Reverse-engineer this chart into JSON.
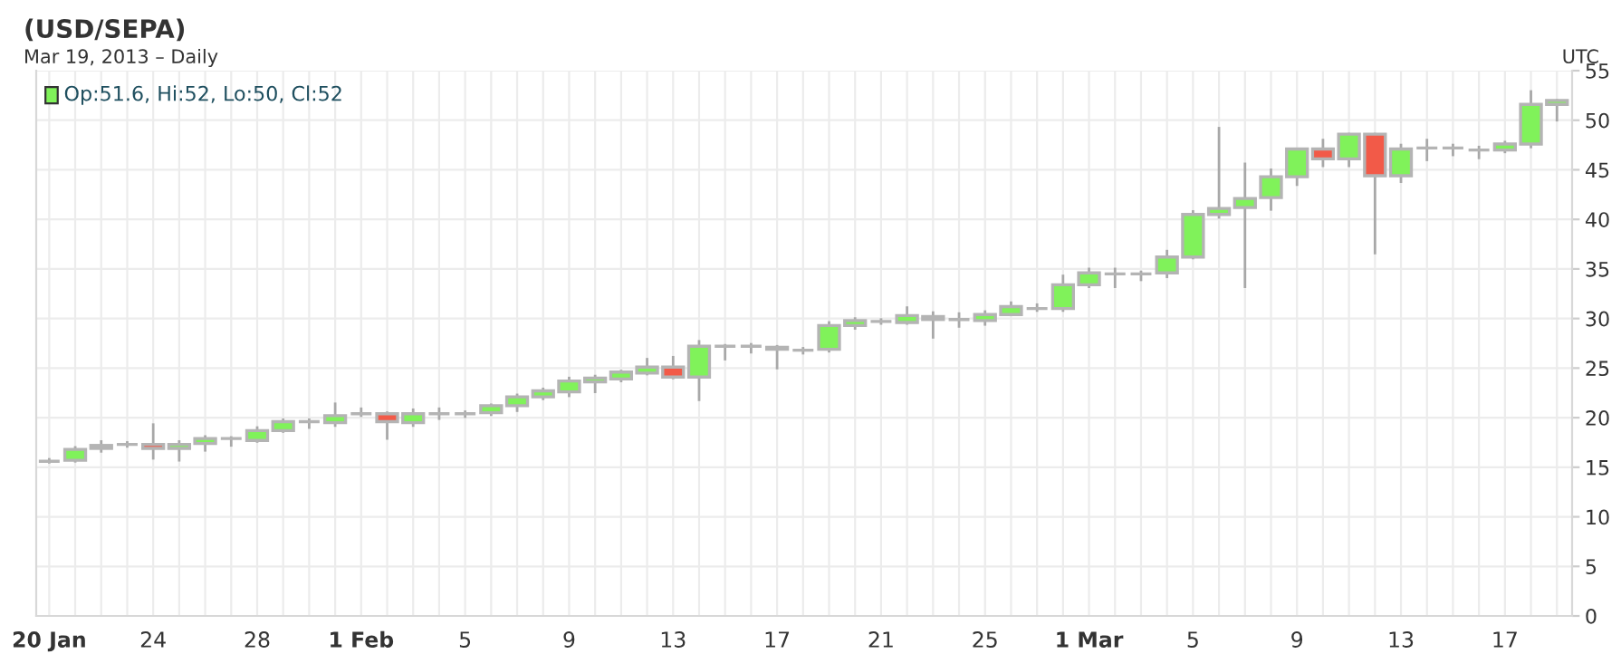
{
  "chart_data": {
    "type": "candlestick",
    "title": "(USD/SEPA)",
    "subtitle": "Mar 19, 2013 – Daily",
    "annotations": [
      "Op:51.6, Hi:52, Lo:50, Cl:52",
      "UTC"
    ],
    "x": [
      "2013-01-20",
      "2013-01-21",
      "2013-01-22",
      "2013-01-23",
      "2013-01-24",
      "2013-01-25",
      "2013-01-26",
      "2013-01-27",
      "2013-01-28",
      "2013-01-29",
      "2013-01-30",
      "2013-01-31",
      "2013-02-01",
      "2013-02-02",
      "2013-02-03",
      "2013-02-04",
      "2013-02-05",
      "2013-02-06",
      "2013-02-07",
      "2013-02-08",
      "2013-02-09",
      "2013-02-10",
      "2013-02-11",
      "2013-02-12",
      "2013-02-13",
      "2013-02-14",
      "2013-02-15",
      "2013-02-16",
      "2013-02-17",
      "2013-02-18",
      "2013-02-19",
      "2013-02-20",
      "2013-02-21",
      "2013-02-22",
      "2013-02-23",
      "2013-02-24",
      "2013-02-25",
      "2013-02-26",
      "2013-02-27",
      "2013-02-28",
      "2013-03-01",
      "2013-03-02",
      "2013-03-03",
      "2013-03-04",
      "2013-03-05",
      "2013-03-06",
      "2013-03-07",
      "2013-03-08",
      "2013-03-09",
      "2013-03-10",
      "2013-03-11",
      "2013-03-12",
      "2013-03-13",
      "2013-03-14",
      "2013-03-15",
      "2013-03-16",
      "2013-03-17",
      "2013-03-18",
      "2013-03-19"
    ],
    "ohlc": [
      [
        15.6,
        15.8,
        15.5,
        15.6
      ],
      [
        15.7,
        17.0,
        15.6,
        16.8
      ],
      [
        16.9,
        17.6,
        16.6,
        17.2
      ],
      [
        17.3,
        17.5,
        17.1,
        17.3
      ],
      [
        17.3,
        19.3,
        15.9,
        16.9
      ],
      [
        16.9,
        17.6,
        15.7,
        17.3
      ],
      [
        17.4,
        18.1,
        16.7,
        17.9
      ],
      [
        17.9,
        18.0,
        17.2,
        17.9
      ],
      [
        17.7,
        19.0,
        17.6,
        18.7
      ],
      [
        18.7,
        19.8,
        18.6,
        19.6
      ],
      [
        19.6,
        19.8,
        19.0,
        19.6
      ],
      [
        19.5,
        21.4,
        19.2,
        20.2
      ],
      [
        20.4,
        20.9,
        20.2,
        20.4
      ],
      [
        20.4,
        20.5,
        17.9,
        19.6
      ],
      [
        19.5,
        20.8,
        19.2,
        20.4
      ],
      [
        20.4,
        20.9,
        19.9,
        20.4
      ],
      [
        20.4,
        20.6,
        20.1,
        20.4
      ],
      [
        20.5,
        21.3,
        20.3,
        21.2
      ],
      [
        21.2,
        22.3,
        20.7,
        22.1
      ],
      [
        22.1,
        22.9,
        21.9,
        22.7
      ],
      [
        22.6,
        24.0,
        22.2,
        23.7
      ],
      [
        23.6,
        24.2,
        22.6,
        24.0
      ],
      [
        23.9,
        24.7,
        23.7,
        24.6
      ],
      [
        24.5,
        25.9,
        24.4,
        25.1
      ],
      [
        25.1,
        26.1,
        24.0,
        24.1
      ],
      [
        24.1,
        27.7,
        21.8,
        27.2
      ],
      [
        27.2,
        27.3,
        25.9,
        27.2
      ],
      [
        27.2,
        27.4,
        26.6,
        27.2
      ],
      [
        27.1,
        27.2,
        25.0,
        26.9
      ],
      [
        26.8,
        27.0,
        26.5,
        26.8
      ],
      [
        26.9,
        29.6,
        26.7,
        29.3
      ],
      [
        29.3,
        30.0,
        29.0,
        29.8
      ],
      [
        29.7,
        29.9,
        29.5,
        29.7
      ],
      [
        29.6,
        31.1,
        29.5,
        30.3
      ],
      [
        30.2,
        30.6,
        28.1,
        29.9
      ],
      [
        29.9,
        30.5,
        29.2,
        29.9
      ],
      [
        29.8,
        30.7,
        29.4,
        30.4
      ],
      [
        30.4,
        31.6,
        30.4,
        31.2
      ],
      [
        31.0,
        31.4,
        30.8,
        31.0
      ],
      [
        31.0,
        34.3,
        30.8,
        33.4
      ],
      [
        33.4,
        35.0,
        33.2,
        34.6
      ],
      [
        34.5,
        35.0,
        33.2,
        34.5
      ],
      [
        34.5,
        34.7,
        33.9,
        34.5
      ],
      [
        34.6,
        36.8,
        34.2,
        36.2
      ],
      [
        36.2,
        40.8,
        36.1,
        40.5
      ],
      [
        40.5,
        49.2,
        40.2,
        41.1
      ],
      [
        41.2,
        45.6,
        33.2,
        42.1
      ],
      [
        42.2,
        45.0,
        41.0,
        44.3
      ],
      [
        44.3,
        47.1,
        43.5,
        47.1
      ],
      [
        47.1,
        48.0,
        45.4,
        46.1
      ],
      [
        46.1,
        48.6,
        45.4,
        48.6
      ],
      [
        48.6,
        48.6,
        36.6,
        44.4
      ],
      [
        44.4,
        47.5,
        43.8,
        47.1
      ],
      [
        47.2,
        48.0,
        46.0,
        47.2
      ],
      [
        47.2,
        47.5,
        46.5,
        47.2
      ],
      [
        47.0,
        47.3,
        46.2,
        47.0
      ],
      [
        47.0,
        47.8,
        46.8,
        47.6
      ],
      [
        47.6,
        52.9,
        47.3,
        51.6
      ],
      [
        51.6,
        52,
        50,
        52
      ]
    ],
    "colors": [
      "#b4b4b4",
      "#80f25a",
      "#80f25a",
      "#b4b4b4",
      "#f25a48",
      "#80f25a",
      "#80f25a",
      "#b4b4b4",
      "#80f25a",
      "#80f25a",
      "#b4b4b4",
      "#80f25a",
      "#b4b4b4",
      "#f25a48",
      "#80f25a",
      "#b4b4b4",
      "#b4b4b4",
      "#80f25a",
      "#80f25a",
      "#80f25a",
      "#80f25a",
      "#80f25a",
      "#80f25a",
      "#80f25a",
      "#f25a48",
      "#80f25a",
      "#b4b4b4",
      "#b4b4b4",
      "#f25a48",
      "#b4b4b4",
      "#80f25a",
      "#80f25a",
      "#b4b4b4",
      "#80f25a",
      "#f25a48",
      "#b4b4b4",
      "#80f25a",
      "#80f25a",
      "#b4b4b4",
      "#80f25a",
      "#80f25a",
      "#b4b4b4",
      "#b4b4b4",
      "#80f25a",
      "#80f25a",
      "#80f25a",
      "#80f25a",
      "#80f25a",
      "#80f25a",
      "#f25a48",
      "#80f25a",
      "#f25a48",
      "#80f25a",
      "#b4b4b4",
      "#b4b4b4",
      "#b4b4b4",
      "#80f25a",
      "#80f25a",
      "#80f25a"
    ],
    "xlim": [
      "2013-01-19T12:00",
      "2013-03-19T14:00"
    ],
    "xticks": [
      {
        "value": "2013-01-20",
        "label": "20 Jan"
      },
      {
        "value": "2013-01-21",
        "label": null
      },
      {
        "value": "2013-01-22",
        "label": null
      },
      {
        "value": "2013-01-23",
        "label": null
      },
      {
        "value": "2013-01-24",
        "label": "24"
      },
      {
        "value": "2013-01-25",
        "label": null
      },
      {
        "value": "2013-01-26",
        "label": null
      },
      {
        "value": "2013-01-27",
        "label": null
      },
      {
        "value": "2013-01-28",
        "label": "28"
      },
      {
        "value": "2013-01-29",
        "label": null
      },
      {
        "value": "2013-01-30",
        "label": null
      },
      {
        "value": "2013-01-31",
        "label": null
      },
      {
        "value": "2013-02-01",
        "label": "1 Feb"
      },
      {
        "value": "2013-02-02",
        "label": null
      },
      {
        "value": "2013-02-03",
        "label": null
      },
      {
        "value": "2013-02-04",
        "label": null
      },
      {
        "value": "2013-02-05",
        "label": "5"
      },
      {
        "value": "2013-02-06",
        "label": null
      },
      {
        "value": "2013-02-07",
        "label": null
      },
      {
        "value": "2013-02-08",
        "label": null
      },
      {
        "value": "2013-02-09",
        "label": "9"
      },
      {
        "value": "2013-02-10",
        "label": null
      },
      {
        "value": "2013-02-11",
        "label": null
      },
      {
        "value": "2013-02-12",
        "label": null
      },
      {
        "value": "2013-02-13",
        "label": "13"
      },
      {
        "value": "2013-02-14",
        "label": null
      },
      {
        "value": "2013-02-15",
        "label": null
      },
      {
        "value": "2013-02-16",
        "label": null
      },
      {
        "value": "2013-02-17",
        "label": "17"
      },
      {
        "value": "2013-02-18",
        "label": null
      },
      {
        "value": "2013-02-19",
        "label": null
      },
      {
        "value": "2013-02-20",
        "label": null
      },
      {
        "value": "2013-02-21",
        "label": "21"
      },
      {
        "value": "2013-02-22",
        "label": null
      },
      {
        "value": "2013-02-23",
        "label": null
      },
      {
        "value": "2013-02-24",
        "label": null
      },
      {
        "value": "2013-02-25",
        "label": "25"
      },
      {
        "value": "2013-02-26",
        "label": null
      },
      {
        "value": "2013-02-27",
        "label": null
      },
      {
        "value": "2013-02-28",
        "label": null
      },
      {
        "value": "2013-03-01",
        "label": "1 Mar"
      },
      {
        "value": "2013-03-02",
        "label": null
      },
      {
        "value": "2013-03-03",
        "label": null
      },
      {
        "value": "2013-03-04",
        "label": null
      },
      {
        "value": "2013-03-05",
        "label": "5"
      },
      {
        "value": "2013-03-06",
        "label": null
      },
      {
        "value": "2013-03-07",
        "label": null
      },
      {
        "value": "2013-03-08",
        "label": null
      },
      {
        "value": "2013-03-09",
        "label": "9"
      },
      {
        "value": "2013-03-10",
        "label": null
      },
      {
        "value": "2013-03-11",
        "label": null
      },
      {
        "value": "2013-03-12",
        "label": null
      },
      {
        "value": "2013-03-13",
        "label": "13"
      },
      {
        "value": "2013-03-14",
        "label": null
      },
      {
        "value": "2013-03-15",
        "label": null
      },
      {
        "value": "2013-03-16",
        "label": null
      },
      {
        "value": "2013-03-17",
        "label": "17"
      },
      {
        "value": "2013-03-18",
        "label": null
      },
      {
        "value": "2013-03-19",
        "label": null
      }
    ],
    "ylim": [
      0,
      55
    ],
    "yticks": [
      0,
      5,
      10,
      15,
      20,
      25,
      30,
      35,
      40,
      45,
      50,
      55
    ],
    "grid": true
  }
}
